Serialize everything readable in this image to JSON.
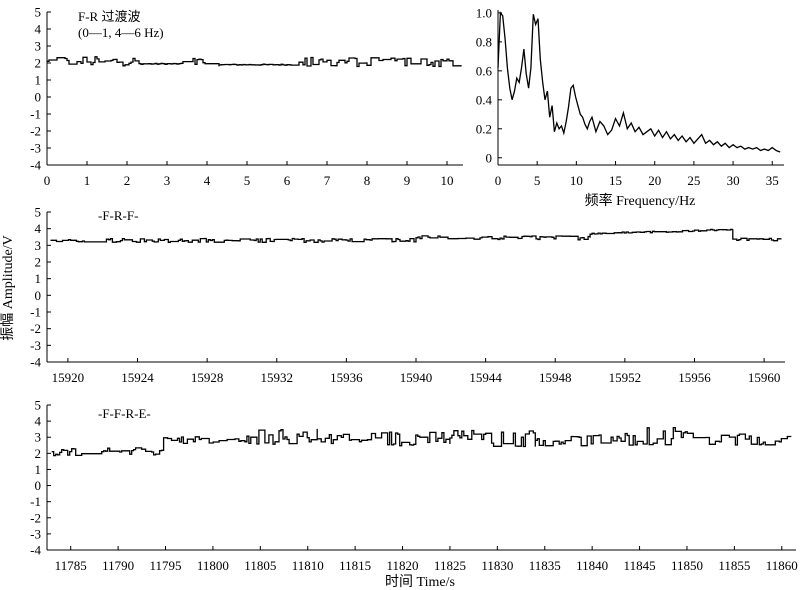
{
  "figure": {
    "y_axis_title": "振幅 Amplitude/V",
    "x_axis_title": "时间 Time/s"
  },
  "chart_data": [
    {
      "id": "p1",
      "type": "line",
      "annotation_lines": [
        "F-R 过渡波",
        "(0—1, 4—6 Hz)"
      ],
      "xlabel": "",
      "ylabel": "",
      "xlim": [
        0,
        10.4
      ],
      "ylim": [
        -4,
        5
      ],
      "xticks": [
        0,
        1,
        2,
        3,
        4,
        5,
        6,
        7,
        8,
        9,
        10
      ],
      "yticks": [
        5,
        4,
        3,
        2,
        1,
        0,
        -1,
        -2,
        -3,
        -4
      ],
      "grid": false,
      "series": [
        {
          "segments": [
            {
              "x0": 0.0,
              "x1": 2.3,
              "base": 2.1,
              "amp": 0.28
            },
            {
              "x0": 2.3,
              "x1": 3.4,
              "base": 1.95,
              "amp": 0.03
            },
            {
              "x0": 3.4,
              "x1": 4.3,
              "base": 2.05,
              "amp": 0.25
            },
            {
              "x0": 4.3,
              "x1": 6.3,
              "base": 1.9,
              "amp": 0.03
            },
            {
              "x0": 6.3,
              "x1": 10.35,
              "base": 2.05,
              "amp": 0.28
            }
          ]
        }
      ]
    },
    {
      "id": "p2",
      "type": "line",
      "annotation_lines": [],
      "xlabel": "频率 Frequency/Hz",
      "ylabel": "",
      "xlim": [
        0,
        36.5
      ],
      "ylim": [
        -0.05,
        1.02
      ],
      "xticks": [
        0,
        5,
        10,
        15,
        20,
        25,
        30,
        35
      ],
      "yticks": [
        1.0,
        0.8,
        0.6,
        0.4,
        0.2,
        0
      ],
      "grid": false,
      "series": [
        {
          "x": [
            0,
            0.3,
            0.6,
            0.9,
            1.2,
            1.5,
            1.8,
            2.1,
            2.4,
            2.7,
            3.0,
            3.3,
            3.6,
            3.9,
            4.2,
            4.5,
            4.8,
            5.1,
            5.4,
            5.7,
            6.0,
            6.3,
            6.6,
            6.9,
            7.2,
            7.5,
            7.8,
            8.1,
            8.4,
            8.7,
            9.0,
            9.3,
            9.6,
            9.9,
            10.2,
            10.5,
            10.8,
            11.1,
            11.4,
            11.7,
            12.0,
            12.5,
            13.0,
            13.5,
            14.0,
            14.5,
            15.0,
            15.5,
            16.0,
            16.5,
            17.0,
            17.5,
            18.0,
            18.5,
            19.0,
            19.5,
            20.0,
            20.5,
            21.0,
            21.5,
            22.0,
            22.5,
            23.0,
            23.5,
            24.0,
            24.5,
            25.0,
            25.5,
            26.0,
            26.5,
            27.0,
            27.5,
            28.0,
            28.5,
            29.0,
            29.5,
            30.0,
            30.5,
            31.0,
            31.5,
            32.0,
            32.5,
            33.0,
            33.5,
            34.0,
            34.5,
            35.0,
            35.5,
            36.0
          ],
          "y": [
            0.62,
            1.0,
            0.98,
            0.82,
            0.62,
            0.48,
            0.4,
            0.46,
            0.55,
            0.52,
            0.62,
            0.75,
            0.58,
            0.48,
            0.62,
            0.99,
            0.92,
            0.96,
            0.68,
            0.52,
            0.4,
            0.46,
            0.28,
            0.36,
            0.18,
            0.24,
            0.2,
            0.22,
            0.17,
            0.25,
            0.35,
            0.48,
            0.5,
            0.42,
            0.36,
            0.3,
            0.28,
            0.23,
            0.2,
            0.25,
            0.28,
            0.18,
            0.25,
            0.22,
            0.16,
            0.19,
            0.27,
            0.22,
            0.31,
            0.2,
            0.24,
            0.18,
            0.21,
            0.16,
            0.18,
            0.2,
            0.15,
            0.19,
            0.14,
            0.18,
            0.13,
            0.16,
            0.12,
            0.15,
            0.11,
            0.14,
            0.1,
            0.13,
            0.16,
            0.1,
            0.12,
            0.09,
            0.11,
            0.08,
            0.1,
            0.07,
            0.09,
            0.07,
            0.08,
            0.06,
            0.07,
            0.06,
            0.07,
            0.05,
            0.06,
            0.05,
            0.07,
            0.05,
            0.04
          ]
        }
      ]
    },
    {
      "id": "p3",
      "type": "line",
      "annotation_lines": [
        "-F-R-F-"
      ],
      "xlabel": "",
      "ylabel": "",
      "xlim": [
        15918.8,
        15961.2
      ],
      "ylim": [
        -4,
        5
      ],
      "xticks": [
        15920,
        15924,
        15928,
        15932,
        15936,
        15940,
        15944,
        15948,
        15952,
        15956,
        15960
      ],
      "yticks": [
        5,
        4,
        3,
        2,
        1,
        0,
        -1,
        -2,
        -3,
        -4
      ],
      "grid": false,
      "series": [
        {
          "segments": [
            {
              "x0": 15919.0,
              "x1": 15940.0,
              "base": 3.3,
              "amp": 0.12
            },
            {
              "x0": 15940.0,
              "x1": 15950.0,
              "base": 3.45,
              "amp": 0.12
            },
            {
              "x0": 15950.0,
              "x1": 15958.2,
              "base": 3.7,
              "amp": 0.05,
              "base_end": 3.95
            },
            {
              "x0": 15958.2,
              "x1": 15961.0,
              "base": 3.35,
              "amp": 0.08
            }
          ]
        }
      ]
    },
    {
      "id": "p4",
      "type": "line",
      "annotation_lines": [
        "-F-F-R-E-"
      ],
      "xlabel": "",
      "ylabel": "",
      "xlim": [
        11782.5,
        11861.5
      ],
      "ylim": [
        -4,
        5
      ],
      "xticks": [
        11785,
        11790,
        11795,
        11800,
        11805,
        11810,
        11815,
        11820,
        11825,
        11830,
        11835,
        11840,
        11845,
        11850,
        11855,
        11860
      ],
      "yticks": [
        5,
        4,
        3,
        2,
        1,
        0,
        -1,
        -2,
        -3,
        -4
      ],
      "grid": false,
      "series": [
        {
          "segments": [
            {
              "x0": 11783.0,
              "x1": 11794.8,
              "base": 2.1,
              "amp": 0.25
            },
            {
              "x0": 11794.8,
              "x1": 11804.0,
              "base": 2.85,
              "amp": 0.25
            },
            {
              "x0": 11804.0,
              "x1": 11811.0,
              "base": 3.0,
              "amp": 0.55
            },
            {
              "x0": 11811.0,
              "x1": 11825.0,
              "base": 2.9,
              "amp": 0.45
            },
            {
              "x0": 11825.0,
              "x1": 11834.0,
              "base": 2.95,
              "amp": 0.55
            },
            {
              "x0": 11834.0,
              "x1": 11842.0,
              "base": 2.8,
              "amp": 0.35
            },
            {
              "x0": 11842.0,
              "x1": 11853.0,
              "base": 3.0,
              "amp": 0.6
            },
            {
              "x0": 11853.0,
              "x1": 11861.0,
              "base": 2.75,
              "amp": 0.45
            }
          ]
        }
      ]
    }
  ]
}
